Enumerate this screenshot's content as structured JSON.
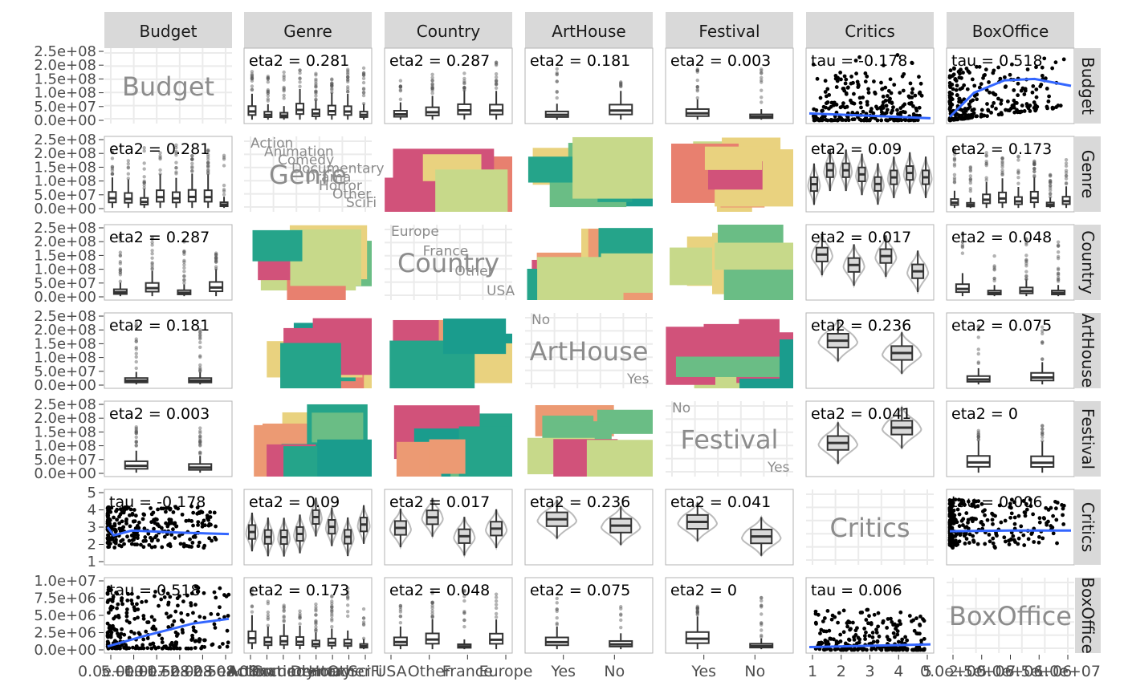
{
  "chart_data": {
    "type": "pairs",
    "variables": [
      "Budget",
      "Genre",
      "Country",
      "ArtHouse",
      "Festival",
      "Critics",
      "BoxOffice"
    ],
    "strip_labels": [
      "Budget",
      "Genre",
      "Country",
      "ArtHouse",
      "Festival",
      "Critics",
      "BoxOffice"
    ],
    "row_y_ticks": [
      [
        "0.0e+00",
        "5.0e+07",
        "1.0e+08",
        "1.5e+08",
        "2.0e+08",
        "2.5e+08"
      ],
      [
        "0.0e+00",
        "5.0e+07",
        "1.0e+08",
        "1.5e+08",
        "2.0e+08",
        "2.5e+08"
      ],
      [
        "0.0e+00",
        "5.0e+07",
        "1.0e+08",
        "1.5e+08",
        "2.0e+08",
        "2.5e+08"
      ],
      [
        "0.0e+00",
        "5.0e+07",
        "1.0e+08",
        "1.5e+08",
        "2.0e+08",
        "2.5e+08"
      ],
      [
        "0.0e+00",
        "5.0e+07",
        "1.0e+08",
        "1.5e+08",
        "2.0e+08",
        "2.5e+08"
      ],
      [
        "1",
        "2",
        "3",
        "4",
        "5"
      ],
      [
        "0.0e+00",
        "2.5e+06",
        "5.0e+06",
        "7.5e+06",
        "1.0e+07"
      ]
    ],
    "col_x_ticks": [
      [
        "0.0e+00",
        "5.0e+07",
        "1.0e+08",
        "1.5e+08",
        "2.0e+08",
        "2.5e+08"
      ],
      [
        "Action",
        "Animation",
        "Comedy",
        "Documentary",
        "Drama",
        "Horror",
        "Other",
        "SciFi"
      ],
      [
        "USA",
        "Other",
        "France",
        "Europe"
      ],
      [
        "Yes",
        "No"
      ],
      [
        "Yes",
        "No"
      ],
      [
        "1",
        "2",
        "3",
        "4",
        "5"
      ],
      [
        "0.0e+00",
        "2.5e+06",
        "5.0e+06",
        "7.5e+06",
        "1.0e+07"
      ]
    ],
    "panel_stats": {
      "r0": [
        null,
        "eta2 = 0.281",
        "eta2 = 0.287",
        "eta2 = 0.181",
        "eta2 = 0.003",
        "tau = -0.178",
        "tau = 0.518"
      ],
      "r1": [
        "eta2 = 0.281",
        null,
        null,
        null,
        null,
        "eta2 = 0.09",
        "eta2 = 0.173"
      ],
      "r2": [
        "eta2 = 0.287",
        null,
        null,
        null,
        null,
        "eta2 = 0.017",
        "eta2 = 0.048"
      ],
      "r3": [
        "eta2 = 0.181",
        null,
        null,
        null,
        null,
        "eta2 = 0.236",
        "eta2 = 0.075"
      ],
      "r4": [
        "eta2 = 0.003",
        null,
        null,
        null,
        null,
        "eta2 = 0.041",
        "eta2 = 0"
      ],
      "r5": [
        "tau = -0.178",
        "eta2 = 0.09",
        "eta2 = 0.017",
        "eta2 = 0.236",
        "eta2 = 0.041",
        null,
        "tau = 0.006"
      ],
      "r6": [
        "tau = 0.518",
        "eta2 = 0.173",
        "eta2 = 0.048",
        "eta2 = 0.075",
        "eta2 = 0",
        "tau = 0.006",
        null
      ]
    },
    "diag_level_labels": {
      "Genre": [
        "Action",
        "Animation",
        "Comedy",
        "Documentary",
        "Drama",
        "Horror",
        "Other",
        "SciFi"
      ],
      "Country": [
        "Europe",
        "France",
        "Other",
        "USA"
      ],
      "ArtHouse": [
        "No",
        "Yes"
      ],
      "Festival": [
        "No",
        "Yes"
      ]
    },
    "diag_critics_ticks_y": [
      "1",
      "2",
      "3",
      "4",
      "5"
    ],
    "diag_box_ticks": [
      "0.0e+00",
      "2.5e+06",
      "5.0e+06",
      "7.5e+06",
      "1.0e+07"
    ],
    "colors": {
      "strip_bg": "#d9d9d9",
      "panel_border": "#b3b3b3",
      "grid": "#ebebeb",
      "smooth": "#3366ff",
      "points": "#000000",
      "box_fill": "#d9d9d9",
      "mosaic": [
        "#d1527a",
        "#e8806f",
        "#ec9a73",
        "#e9d27f",
        "#c7d98a",
        "#6abd85",
        "#25a48a",
        "#1a9c8d"
      ]
    }
  }
}
